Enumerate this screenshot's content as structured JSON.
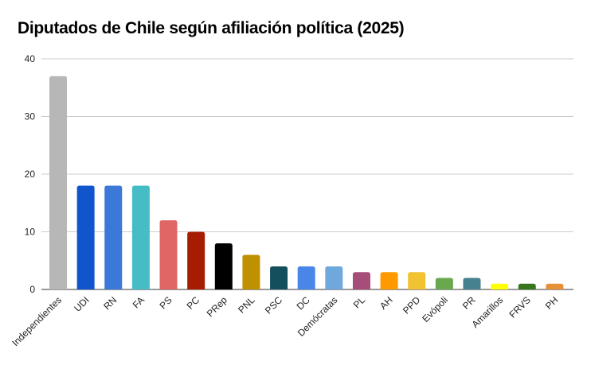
{
  "chart_data": {
    "type": "bar",
    "title": "Diputados de Chile según afiliación política (2025)",
    "xlabel": "",
    "ylabel": "",
    "ylim": [
      0,
      40
    ],
    "yticks": [
      0,
      10,
      20,
      30,
      40
    ],
    "grid": true,
    "legend": "none",
    "categories": [
      "Independientes",
      "UDI",
      "RN",
      "FA",
      "PS",
      "PC",
      "PRep",
      "PNL",
      "PSC",
      "DC",
      "Demócratas",
      "PL",
      "AH",
      "PPD",
      "Evópoli",
      "PR",
      "Amarillos",
      "FRVS",
      "PH"
    ],
    "values": [
      37,
      18,
      18,
      18,
      12,
      10,
      8,
      6,
      4,
      4,
      4,
      3,
      3,
      3,
      2,
      2,
      1,
      1,
      1
    ],
    "colors": [
      "#b7b7b7",
      "#1155cc",
      "#3c78d8",
      "#46bdc6",
      "#e06666",
      "#a61c00",
      "#000000",
      "#bf9000",
      "#134f5c",
      "#4a86e8",
      "#6fa8dc",
      "#a64d79",
      "#ff9900",
      "#f1c232",
      "#6aa84f",
      "#45818e",
      "#ffff00",
      "#38761d",
      "#e69138"
    ]
  }
}
